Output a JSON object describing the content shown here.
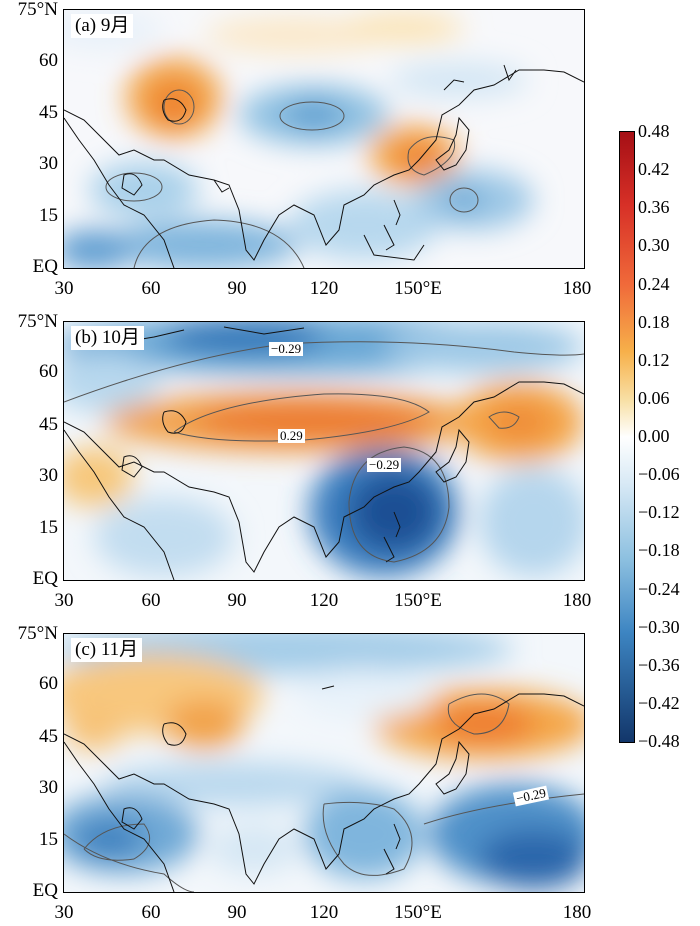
{
  "panels": [
    {
      "tag": "(a)  9月",
      "y_ticks": [
        "75°N",
        "60",
        "45",
        "30",
        "15",
        "EQ"
      ],
      "x_ticks": [
        "30",
        "60",
        "90",
        "120",
        "150°E",
        "180"
      ],
      "contour_labels": []
    },
    {
      "tag": "(b)  10月",
      "y_ticks": [
        "75°N",
        "60",
        "45",
        "30",
        "15",
        "EQ"
      ],
      "x_ticks": [
        "30",
        "60",
        "90",
        "120",
        "150°E",
        "180"
      ],
      "contour_labels": [
        "−0.29",
        "0.29",
        "−0.29"
      ]
    },
    {
      "tag": "(c)  11月",
      "y_ticks": [
        "75°N",
        "60",
        "45",
        "30",
        "15",
        "EQ"
      ],
      "x_ticks": [
        "30",
        "60",
        "90",
        "120",
        "150°E",
        "180"
      ],
      "contour_labels": [
        "−0.29"
      ]
    }
  ],
  "colorbar": {
    "labels": [
      "0.48",
      "0.42",
      "0.36",
      "0.30",
      "0.24",
      "0.18",
      "0.12",
      "0.06",
      "0.00",
      "−0.06",
      "−0.12",
      "−0.18",
      "−0.24",
      "−0.30",
      "−0.36",
      "−0.42",
      "−0.48"
    ],
    "colors": [
      "#a50f15",
      "#d73027",
      "#f06a3a",
      "#f59a3c",
      "#f7c064",
      "#f9e0a8",
      "#ffffff",
      "#d6e8f5",
      "#9ecae1",
      "#4f93c8",
      "#2166ac",
      "#14407a"
    ]
  }
}
